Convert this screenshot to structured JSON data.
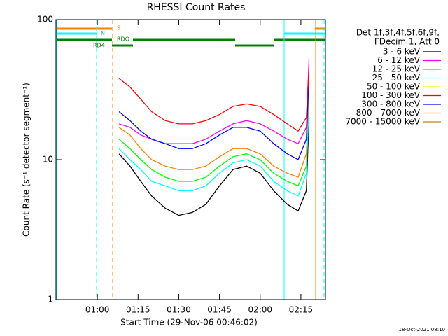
{
  "chart_data": {
    "type": "line",
    "title": "RHESSI Count Rates",
    "x_label": "Start Time (29-Nov-06 00:46:02)",
    "y_label": "Count Rate (s⁻¹ detector segment⁻¹)",
    "footer": "18-Oct-2021 08:10",
    "legend_header": [
      "Det 1f,3f,4f,5f,6f,9f,",
      "FDecim 1, Att 0"
    ],
    "annotations": [
      "S",
      "N",
      "RD4",
      "RDO"
    ],
    "log_y": true,
    "xlim": [
      44.75,
      144.05
    ],
    "xticks": [
      {
        "value": 60,
        "label": "01:00"
      },
      {
        "value": 75,
        "label": "01:15"
      },
      {
        "value": 90,
        "label": "01:30"
      },
      {
        "value": 105,
        "label": "01:45"
      },
      {
        "value": 120,
        "label": "02:00"
      },
      {
        "value": 135,
        "label": "02:15"
      }
    ],
    "ylim": [
      1,
      100
    ],
    "yticks": [
      1,
      10,
      100
    ],
    "x": [
      68,
      72,
      76,
      80,
      85,
      90,
      95,
      100,
      105,
      110,
      115,
      120,
      125,
      130,
      134,
      137,
      138
    ],
    "series": [
      {
        "name": "3 - 6 keV",
        "color": "#000000",
        "values": [
          11,
          9,
          7,
          5.5,
          4.5,
          4,
          4.2,
          4.8,
          6.5,
          8.5,
          9,
          8,
          6,
          4.8,
          4.3,
          6,
          20
        ]
      },
      {
        "name": "6 - 12 keV",
        "color": "#ff00ff",
        "values": [
          18,
          17,
          15,
          14,
          13,
          13,
          13,
          14,
          16,
          18,
          19,
          18,
          16,
          14,
          13,
          17,
          52
        ]
      },
      {
        "name": "12 - 25 keV",
        "color": "#00ff00",
        "values": [
          14,
          12,
          10,
          8.5,
          7.5,
          7,
          7,
          7.5,
          9,
          10.5,
          11,
          10,
          8,
          7,
          6.5,
          9,
          30
        ]
      },
      {
        "name": "25 - 50 keV",
        "color": "#00ffff",
        "values": [
          12,
          10,
          8.5,
          7,
          6.5,
          6,
          6,
          6.5,
          8,
          9.5,
          10,
          9,
          7,
          6,
          5.5,
          8,
          25
        ]
      },
      {
        "name": "50 - 100 keV",
        "color": "#ffff00",
        "values": [
          null,
          null,
          null,
          null,
          null,
          null,
          null,
          null,
          null,
          null,
          null,
          null,
          null,
          null,
          null,
          null,
          null
        ]
      },
      {
        "name": "100 - 300 keV",
        "color": "#ff0000",
        "values": [
          38,
          33,
          27,
          22,
          19,
          18,
          18,
          19,
          21,
          24,
          25,
          24,
          21,
          18,
          16,
          20,
          45
        ]
      },
      {
        "name": "300 - 800 keV",
        "color": "#0000ff",
        "values": [
          22,
          19,
          16,
          14,
          13,
          12,
          12,
          13,
          15,
          17,
          17,
          16,
          13,
          11,
          10,
          14,
          40
        ]
      },
      {
        "name": "800 - 7000 keV",
        "color": "#ff8000",
        "values": [
          17,
          15,
          12,
          10,
          9,
          8.5,
          8.5,
          9,
          10.5,
          12,
          12,
          11,
          9,
          8,
          7.5,
          11,
          35
        ]
      },
      {
        "name": "7000 - 15000 keV",
        "color": "#c08000",
        "values": [
          null,
          null,
          null,
          null,
          null,
          null,
          null,
          null,
          null,
          null,
          null,
          null,
          null,
          null,
          null,
          null,
          null
        ]
      }
    ]
  }
}
